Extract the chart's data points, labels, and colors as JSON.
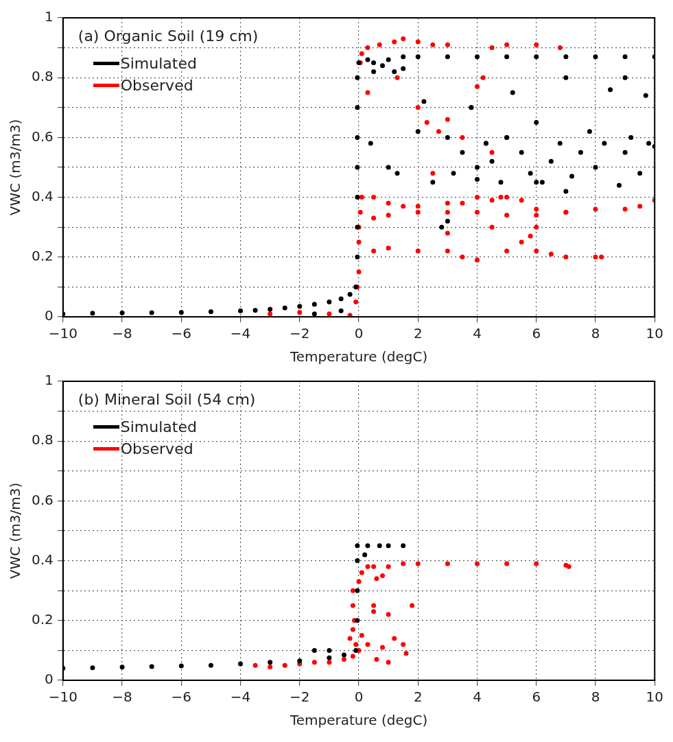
{
  "chart_data": [
    {
      "type": "scatter",
      "title": "(a) Organic Soil (19 cm)",
      "xlabel": "Temperature (degC)",
      "ylabel": "VWC (m3/m3)",
      "xlim": [
        -10,
        10
      ],
      "ylim": [
        0,
        1
      ],
      "xticks": [
        -10,
        -8,
        -6,
        -4,
        -2,
        0,
        2,
        4,
        6,
        8,
        10
      ],
      "yticks": [
        0,
        0.2,
        0.4,
        0.6,
        0.8,
        1
      ],
      "grid": true,
      "legend": "top left",
      "marker": "circle",
      "series": [
        {
          "name": "Simulated",
          "color": "#000000",
          "x": [
            -10,
            -9,
            -8,
            -7,
            -6,
            -5,
            -4,
            -3.5,
            -3,
            -2.5,
            -2,
            -1.5,
            -1,
            -0.6,
            -0.3,
            -0.6,
            -1.5,
            -0.1,
            -0.05,
            -0.05,
            -0.05,
            -0.05,
            -0.05,
            -0.05,
            -0.05,
            0,
            0.3,
            0.5,
            1,
            1.5,
            2,
            3,
            4,
            5,
            6,
            7,
            8,
            9,
            10,
            0.5,
            0.8,
            1.2,
            1.5,
            0.4,
            1,
            1.3,
            2,
            2.2,
            2.5,
            3,
            3.2,
            3.5,
            3.8,
            4,
            4,
            4.3,
            4.5,
            4.8,
            5,
            5.2,
            5.5,
            5.8,
            6,
            6.2,
            6.5,
            6.8,
            7,
            7.2,
            7.5,
            7.8,
            8,
            8.3,
            8.5,
            8.8,
            9,
            9.2,
            9.5,
            9.8,
            10,
            9.7,
            9,
            3,
            2.8,
            6,
            7
          ],
          "values": [
            0.01,
            0.012,
            0.013,
            0.014,
            0.015,
            0.017,
            0.02,
            0.022,
            0.025,
            0.03,
            0.035,
            0.042,
            0.05,
            0.06,
            0.075,
            0.02,
            0.01,
            0.1,
            0.2,
            0.3,
            0.4,
            0.5,
            0.6,
            0.7,
            0.8,
            0.85,
            0.86,
            0.85,
            0.86,
            0.87,
            0.87,
            0.87,
            0.87,
            0.87,
            0.87,
            0.87,
            0.87,
            0.87,
            0.87,
            0.82,
            0.84,
            0.82,
            0.83,
            0.58,
            0.5,
            0.48,
            0.62,
            0.72,
            0.45,
            0.6,
            0.48,
            0.55,
            0.7,
            0.5,
            0.46,
            0.58,
            0.52,
            0.45,
            0.6,
            0.75,
            0.55,
            0.48,
            0.65,
            0.45,
            0.52,
            0.58,
            0.8,
            0.47,
            0.55,
            0.62,
            0.5,
            0.58,
            0.76,
            0.44,
            0.55,
            0.6,
            0.48,
            0.58,
            0.57,
            0.74,
            0.8,
            0.32,
            0.3,
            0.45,
            0.42
          ]
        },
        {
          "name": "Observed",
          "color": "#ff0000",
          "x": [
            -3,
            -2,
            -1,
            -0.3,
            -0.1,
            -0.05,
            0,
            0,
            0,
            0.05,
            0.1,
            0.05,
            0.1,
            0.3,
            0.7,
            1.2,
            1.5,
            2,
            2.5,
            3,
            4.5,
            5,
            6,
            6.8,
            0.5,
            1,
            1.5,
            2,
            3,
            3.5,
            4,
            4.5,
            5,
            5.5,
            6,
            7,
            8,
            9,
            9.5,
            10,
            0.5,
            1,
            2,
            3,
            4,
            5,
            6,
            7,
            0.5,
            1,
            2,
            3,
            3.5,
            4,
            5,
            5.5,
            6,
            6.5,
            7,
            8,
            8.2,
            0.3,
            1.3,
            2,
            2.3,
            2.7,
            3,
            3.5,
            3.8,
            4.3,
            4.5,
            4,
            4.2,
            2.5,
            4.8,
            5,
            6,
            5.8,
            4.5,
            3
          ],
          "values": [
            0.01,
            0.015,
            0.01,
            0.005,
            0.05,
            0.1,
            0.15,
            0.25,
            0.3,
            0.35,
            0.4,
            0.85,
            0.88,
            0.9,
            0.91,
            0.92,
            0.93,
            0.92,
            0.91,
            0.91,
            0.9,
            0.91,
            0.91,
            0.9,
            0.4,
            0.38,
            0.37,
            0.37,
            0.38,
            0.38,
            0.4,
            0.39,
            0.4,
            0.39,
            0.36,
            0.35,
            0.36,
            0.36,
            0.37,
            0.39,
            0.33,
            0.34,
            0.35,
            0.35,
            0.35,
            0.34,
            0.34,
            0.35,
            0.22,
            0.23,
            0.22,
            0.22,
            0.2,
            0.19,
            0.22,
            0.25,
            0.22,
            0.21,
            0.2,
            0.2,
            0.2,
            0.75,
            0.8,
            0.7,
            0.65,
            0.62,
            0.66,
            0.6,
            0.7,
            0.58,
            0.55,
            0.77,
            0.8,
            0.48,
            0.4,
            0.6,
            0.3,
            0.27,
            0.3,
            0.28
          ]
        }
      ]
    },
    {
      "type": "scatter",
      "title": "(b) Mineral Soil (54 cm)",
      "xlabel": "Temperature (degC)",
      "ylabel": "VWC (m3/m3)",
      "xlim": [
        -10,
        10
      ],
      "ylim": [
        0,
        1
      ],
      "xticks": [
        -10,
        -8,
        -6,
        -4,
        -2,
        0,
        2,
        4,
        6,
        8,
        10
      ],
      "yticks": [
        0,
        0.2,
        0.4,
        0.6,
        0.8,
        1
      ],
      "grid": true,
      "legend": "top left",
      "marker": "circle",
      "series": [
        {
          "name": "Simulated",
          "color": "#000000",
          "x": [
            -10,
            -9,
            -8,
            -7,
            -6,
            -5,
            -4,
            -3,
            -2,
            -1,
            -0.5,
            -0.1,
            -0.05,
            -0.05,
            -0.05,
            -0.05,
            0.3,
            0.7,
            1,
            1.5,
            0.2,
            -1.5,
            -1
          ],
          "values": [
            0.04,
            0.042,
            0.044,
            0.046,
            0.048,
            0.05,
            0.055,
            0.06,
            0.065,
            0.075,
            0.085,
            0.1,
            0.2,
            0.3,
            0.4,
            0.45,
            0.45,
            0.45,
            0.45,
            0.45,
            0.42,
            0.1,
            0.1
          ]
        },
        {
          "name": "Observed",
          "color": "#ff0000",
          "x": [
            -3.5,
            -3,
            -2.5,
            -2,
            -1.5,
            -1,
            -0.5,
            -0.2,
            0,
            0.1,
            -0.15,
            -0.2,
            -0.2,
            0,
            0.1,
            0.3,
            0.5,
            1,
            1.5,
            2,
            3,
            4,
            5,
            6,
            7,
            7.1,
            -0.2,
            -0.1,
            0.5,
            0.5,
            1,
            1.8,
            0.3,
            0.8,
            1.2,
            1.5,
            0.6,
            1,
            1.6,
            0.6,
            0.8,
            -0.3
          ],
          "values": [
            0.05,
            0.045,
            0.05,
            0.055,
            0.06,
            0.06,
            0.07,
            0.08,
            0.1,
            0.15,
            0.2,
            0.25,
            0.3,
            0.33,
            0.36,
            0.38,
            0.38,
            0.38,
            0.39,
            0.39,
            0.39,
            0.39,
            0.39,
            0.39,
            0.385,
            0.38,
            0.17,
            0.12,
            0.25,
            0.23,
            0.22,
            0.25,
            0.12,
            0.11,
            0.14,
            0.12,
            0.07,
            0.06,
            0.09,
            0.34,
            0.35,
            0.14
          ]
        }
      ]
    }
  ]
}
